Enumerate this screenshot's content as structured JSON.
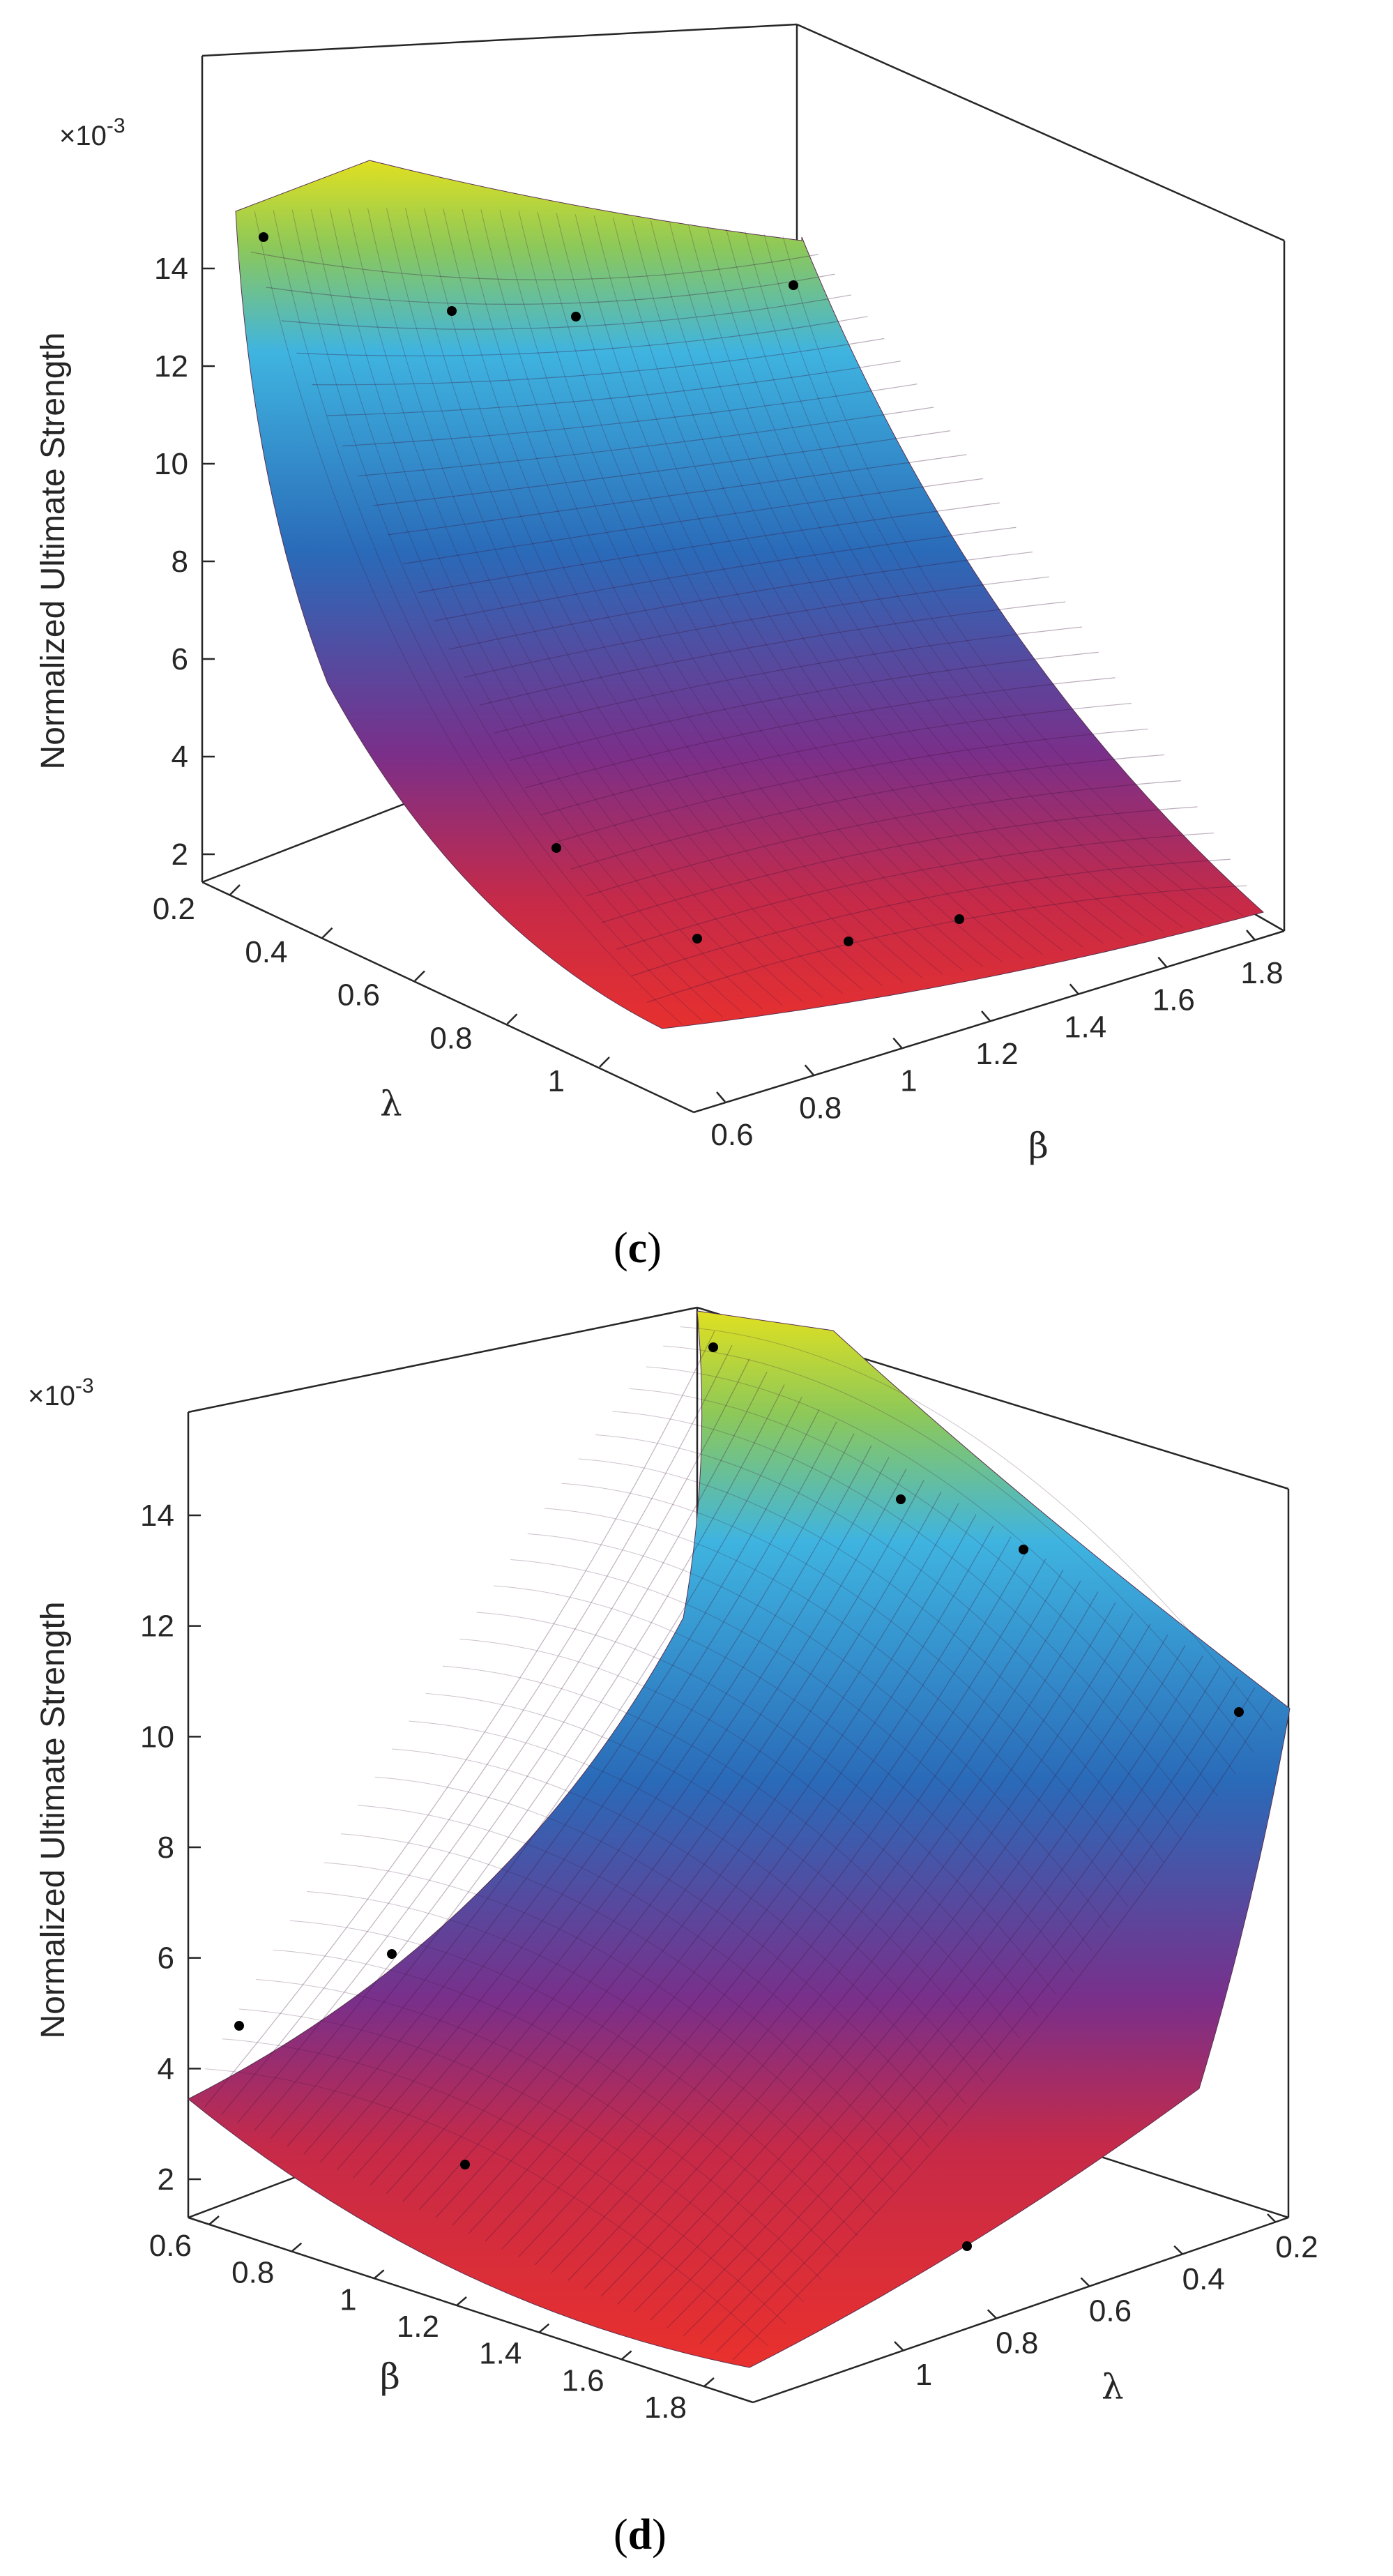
{
  "chart_data": [
    {
      "type": "surface",
      "panel": "c",
      "caption": "(c)",
      "caption_letter": "c",
      "zlabel": "Normalized Ultimate Strength",
      "zscale": "×10-3",
      "zscale_mult": "×10",
      "zscale_exp": "-3",
      "z_ticks": [
        "2",
        "4",
        "6",
        "8",
        "10",
        "12",
        "14"
      ],
      "lambda_label": "λ",
      "lambda_ticks": [
        "0.2",
        "0.4",
        "0.6",
        "0.8",
        "1"
      ],
      "beta_label": "β",
      "beta_ticks": [
        "0.6",
        "0.8",
        "1",
        "1.2",
        "1.4",
        "1.6",
        "1.8"
      ],
      "points": [
        {
          "lambda": 0.2,
          "beta": 0.6,
          "z": 14.7
        },
        {
          "lambda": 0.2,
          "beta": 1.0,
          "z": 13.3
        },
        {
          "lambda": 0.2,
          "beta": 1.3,
          "z": 13.1
        },
        {
          "lambda": 0.2,
          "beta": 1.8,
          "z": 13.7
        },
        {
          "lambda": 1.0,
          "beta": 0.6,
          "z": 2.4
        },
        {
          "lambda": 1.0,
          "beta": 1.0,
          "z": 1.6
        },
        {
          "lambda": 1.0,
          "beta": 1.4,
          "z": 1.8
        },
        {
          "lambda": 1.0,
          "beta": 1.8,
          "z": 2.4
        }
      ]
    },
    {
      "type": "surface",
      "panel": "d",
      "caption": "(d)",
      "caption_letter": "d",
      "zlabel": "Normalized Ultimate Strength",
      "zscale": "×10-3",
      "zscale_mult": "×10",
      "zscale_exp": "-3",
      "z_ticks": [
        "2",
        "4",
        "6",
        "8",
        "10",
        "12",
        "14"
      ],
      "beta_label": "β",
      "beta_ticks": [
        "0.6",
        "0.8",
        "1",
        "1.2",
        "1.4",
        "1.6",
        "1.8"
      ],
      "lambda_label": "λ",
      "lambda_ticks": [
        "0.2",
        "0.4",
        "0.6",
        "0.8",
        "1"
      ],
      "points": [
        {
          "lambda": 0.2,
          "beta": 0.6,
          "z": 15.2
        },
        {
          "lambda": 0.2,
          "beta": 1.0,
          "z": 14.0
        },
        {
          "lambda": 0.2,
          "beta": 1.4,
          "z": 12.7
        },
        {
          "lambda": 0.2,
          "beta": 1.8,
          "z": 11.0
        },
        {
          "lambda": 1.0,
          "beta": 0.6,
          "z": 5.1
        },
        {
          "lambda": 1.0,
          "beta": 1.0,
          "z": 6.4
        },
        {
          "lambda": 1.0,
          "beta": 1.4,
          "z": 2.6
        },
        {
          "lambda": 1.0,
          "beta": 1.8,
          "z": 2.3
        }
      ]
    }
  ]
}
